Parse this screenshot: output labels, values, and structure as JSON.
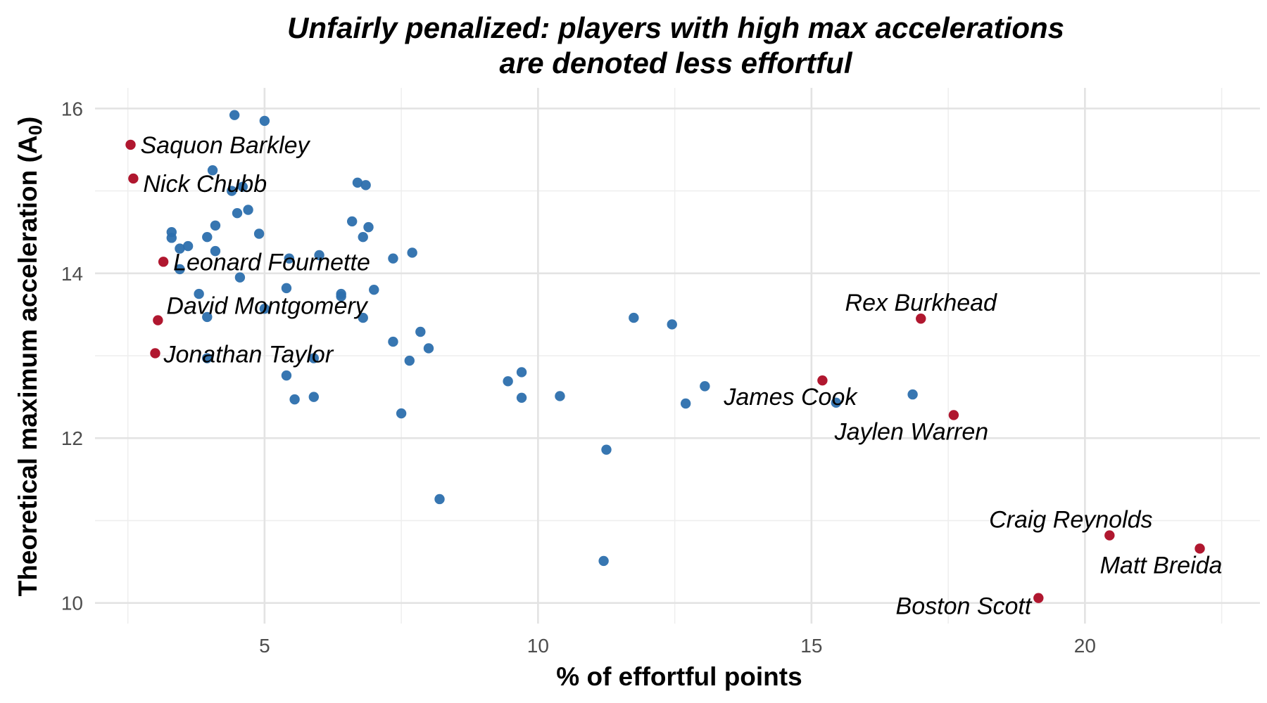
{
  "chart_data": {
    "type": "scatter",
    "title": [
      "Unfairly penalized: players with high max accelerations",
      "are denoted less effortful"
    ],
    "xlabel": "% of effortful points",
    "ylabel": "Theoretical maximum acceleration (A",
    "ylabel_subscript": "0",
    "ylabel_suffix": ")",
    "xlim": [
      1.9,
      23.2
    ],
    "ylim": [
      9.75,
      16.25
    ],
    "x_ticks": [
      5,
      10,
      15,
      20
    ],
    "x_tick_labels": [
      "5",
      "10",
      "15",
      "20"
    ],
    "y_ticks": [
      10,
      12,
      14,
      16
    ],
    "y_tick_labels": [
      "10",
      "12",
      "14",
      "16"
    ],
    "grid": true,
    "colors": {
      "normal": "#2c6fad",
      "highlight": "#b0172f"
    },
    "series": [
      {
        "points": [
          [
            4.45,
            15.92
          ],
          [
            5.0,
            15.85
          ],
          [
            4.05,
            15.25
          ],
          [
            4.4,
            15.0
          ],
          [
            4.6,
            15.05
          ],
          [
            4.5,
            14.73
          ],
          [
            4.7,
            14.77
          ],
          [
            6.7,
            15.1
          ],
          [
            6.85,
            15.07
          ],
          [
            4.1,
            14.58
          ],
          [
            3.3,
            14.5
          ],
          [
            3.3,
            14.43
          ],
          [
            3.6,
            14.33
          ],
          [
            3.45,
            14.3
          ],
          [
            3.95,
            14.44
          ],
          [
            4.9,
            14.48
          ],
          [
            6.6,
            14.63
          ],
          [
            6.9,
            14.56
          ],
          [
            6.8,
            14.44
          ],
          [
            4.1,
            14.27
          ],
          [
            6.0,
            14.22
          ],
          [
            7.7,
            14.25
          ],
          [
            7.35,
            14.18
          ],
          [
            5.45,
            14.18
          ],
          [
            3.45,
            14.05
          ],
          [
            4.55,
            13.95
          ],
          [
            5.4,
            13.82
          ],
          [
            6.4,
            13.75
          ],
          [
            6.4,
            13.72
          ],
          [
            7.0,
            13.8
          ],
          [
            3.8,
            13.75
          ],
          [
            3.95,
            13.47
          ],
          [
            5.0,
            13.57
          ],
          [
            6.8,
            13.46
          ],
          [
            7.85,
            13.29
          ],
          [
            7.35,
            13.17
          ],
          [
            8.0,
            13.09
          ],
          [
            3.95,
            12.97
          ],
          [
            5.9,
            12.97
          ],
          [
            7.65,
            12.94
          ],
          [
            5.4,
            12.76
          ],
          [
            5.55,
            12.47
          ],
          [
            5.9,
            12.5
          ],
          [
            7.5,
            12.3
          ],
          [
            9.45,
            12.69
          ],
          [
            9.7,
            12.8
          ],
          [
            9.7,
            12.49
          ],
          [
            10.4,
            12.51
          ],
          [
            11.75,
            13.46
          ],
          [
            12.45,
            13.38
          ],
          [
            13.05,
            12.63
          ],
          [
            12.7,
            12.42
          ],
          [
            15.45,
            12.43
          ],
          [
            16.85,
            12.53
          ],
          [
            11.25,
            11.86
          ],
          [
            8.2,
            11.26
          ],
          [
            11.2,
            10.51
          ]
        ]
      },
      {
        "points": [
          [
            2.55,
            15.56
          ],
          [
            2.6,
            15.15
          ],
          [
            3.15,
            14.14
          ],
          [
            3.05,
            13.43
          ],
          [
            3.0,
            13.03
          ],
          [
            17.0,
            13.45
          ],
          [
            15.2,
            12.7
          ],
          [
            17.6,
            12.28
          ],
          [
            20.45,
            10.82
          ],
          [
            22.1,
            10.66
          ],
          [
            19.15,
            10.06
          ]
        ],
        "labels": [
          "Saquon Barkley",
          "Nick Chubb",
          "Leonard Fournette",
          "David Montgomery",
          "Jonathan Taylor",
          "Rex Burkhead",
          "James Cook",
          "Jaylen Warren",
          "Craig Reynolds",
          "Matt Breida",
          "Boston Scott"
        ]
      }
    ]
  }
}
